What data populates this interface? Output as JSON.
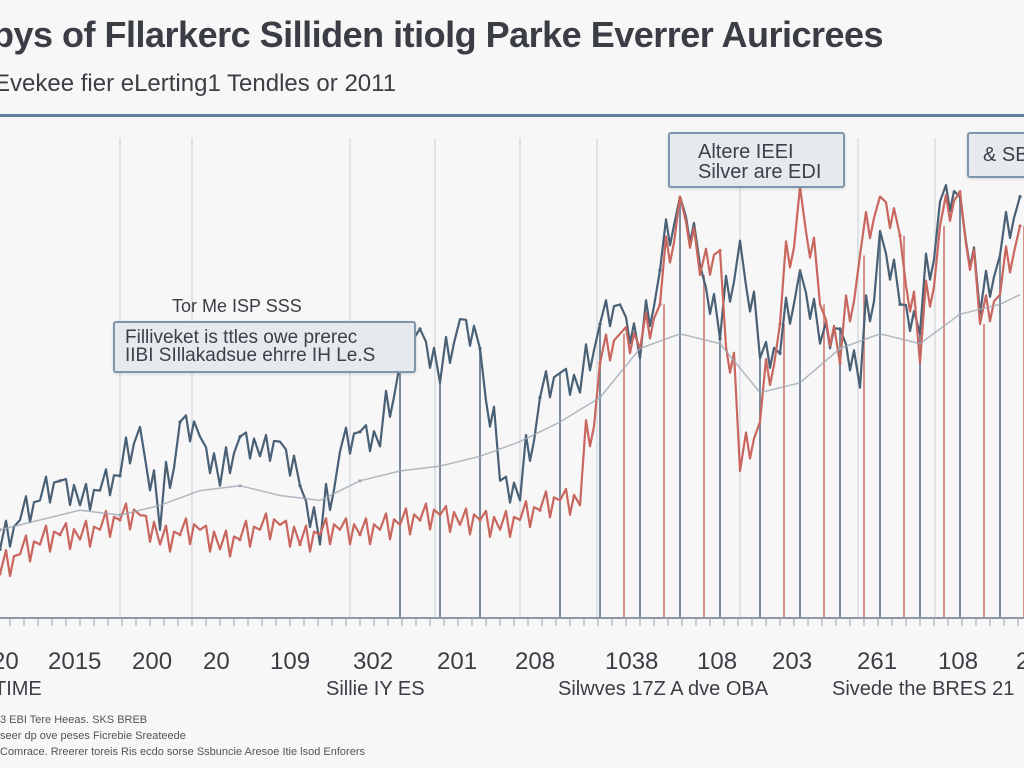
{
  "chart_data": {
    "type": "line",
    "title": "bys of Fllarkerc  Silliden itiolg Parke Everrer Auricrees",
    "subtitle": "Evekee fier eLerting1 Tendles or 2011",
    "annotations": [
      "Tor Me ISP SSS",
      "Filliveket is ttles owe prerec",
      "IIBI SIllakadsue ehrre IH Le.S",
      "Altere IEEI",
      "Silver are EDI",
      "& SB"
    ],
    "x_tick_labels": [
      "20",
      "2015",
      "200",
      "20",
      "109",
      "302",
      "201",
      "208",
      "1038",
      "108",
      "203",
      "261",
      "108",
      "2"
    ],
    "x_labels": [
      "TIME",
      "Sillie IY ES",
      "Silwves 17Z A dve OBA",
      "Sivede the BRES 21"
    ],
    "footer_lines": [
      "3 EBI Tere Heeas. SKS BREB",
      "seer dp ove peses Ficrebie Sreateede",
      "Comrace. Rreerer toreis Ris ecdo sorse Ssbuncie Aresoe Itie lsod Enforers"
    ],
    "ylim": [
      0,
      100
    ],
    "grid": "vertical",
    "series": [
      {
        "name": "",
        "color": "#4a6075",
        "x": [
          0,
          20,
          40,
          60,
          80,
          100,
          120,
          140,
          160,
          180,
          200,
          220,
          240,
          260,
          280,
          300,
          320,
          340,
          360,
          380,
          400,
          420,
          440,
          460,
          480,
          500,
          520,
          540,
          560,
          580,
          600,
          620,
          640,
          660,
          680,
          700,
          720,
          740,
          760,
          780,
          800,
          820,
          840,
          860,
          880,
          900,
          920,
          940,
          960,
          980,
          1000,
          1020
        ],
        "values": [
          14,
          20,
          24,
          28,
          23,
          26,
          29,
          39,
          18,
          40,
          37,
          27,
          37,
          33,
          36,
          27,
          15,
          34,
          38,
          35,
          52,
          59,
          48,
          61,
          55,
          28,
          24,
          45,
          50,
          46,
          60,
          64,
          53,
          71,
          86,
          72,
          57,
          77,
          53,
          54,
          71,
          56,
          59,
          47,
          79,
          64,
          58,
          85,
          86,
          62,
          74,
          86
        ]
      },
      {
        "name": "",
        "color": "#c9675f",
        "x": [
          0,
          20,
          40,
          60,
          80,
          100,
          120,
          140,
          160,
          180,
          200,
          220,
          240,
          260,
          280,
          300,
          320,
          340,
          360,
          380,
          400,
          420,
          440,
          460,
          480,
          500,
          520,
          540,
          560,
          580,
          600,
          620,
          640,
          660,
          680,
          700,
          720,
          740,
          760,
          780,
          800,
          820,
          840,
          860,
          880,
          900,
          920,
          940,
          960,
          980,
          1000,
          1020
        ],
        "values": [
          9,
          13,
          15,
          17,
          16,
          18,
          20,
          21,
          15,
          17,
          18,
          14,
          16,
          18,
          19,
          15,
          17,
          18,
          17,
          18,
          19,
          20,
          21,
          19,
          20,
          18,
          20,
          22,
          24,
          23,
          52,
          58,
          55,
          64,
          86,
          70,
          75,
          30,
          40,
          60,
          88,
          64,
          52,
          74,
          86,
          78,
          52,
          80,
          87,
          60,
          66,
          80
        ]
      },
      {
        "name": "",
        "color": "#9ea8b2",
        "x": [
          0,
          40,
          80,
          120,
          160,
          200,
          240,
          280,
          320,
          360,
          400,
          440,
          480,
          520,
          560,
          600,
          640,
          680,
          720,
          760,
          800,
          840,
          880,
          920,
          960,
          1000,
          1020
        ],
        "values": [
          18,
          20,
          22,
          21,
          23,
          26,
          27,
          25,
          24,
          28,
          30,
          31,
          33,
          36,
          40,
          45,
          55,
          58,
          56,
          46,
          48,
          55,
          58,
          56,
          62,
          64,
          66
        ]
      }
    ]
  }
}
